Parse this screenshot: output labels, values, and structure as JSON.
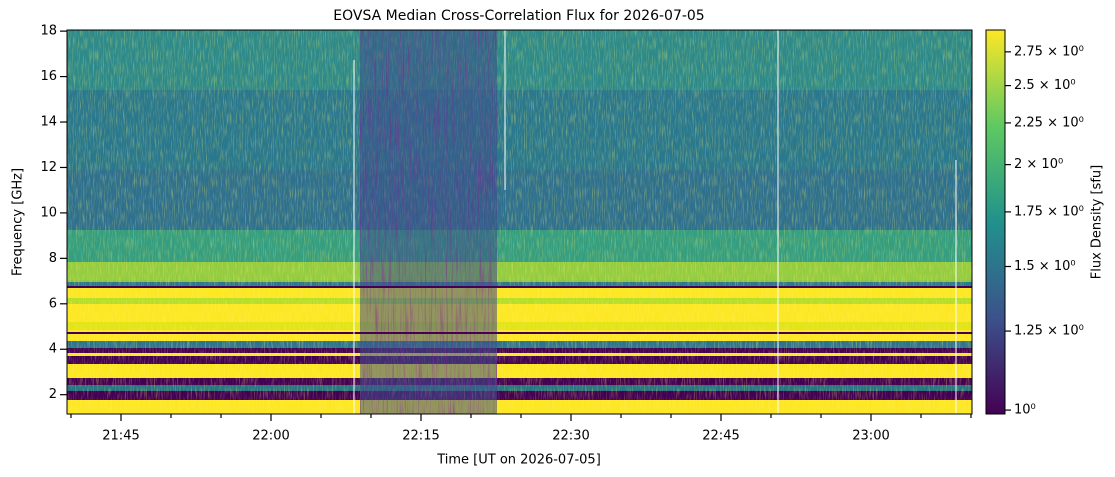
{
  "chart_data": {
    "type": "spectrogram",
    "title": "EOVSA Median Cross-Correlation Flux for 2026-07-05",
    "x_label": "Time [UT on 2026-07-05]",
    "y_label": "Frequency [GHz]",
    "xlim": [
      "21:39:36",
      "23:10:06"
    ],
    "xticks": [
      "21:45",
      "22:00",
      "22:15",
      "22:30",
      "22:45",
      "23:00"
    ],
    "x_minor_ticks": [
      "21:40",
      "21:50",
      "21:55",
      "22:05",
      "22:10",
      "22:20",
      "22:25",
      "22:35",
      "22:40",
      "22:50",
      "22:55",
      "23:05",
      "23:10"
    ],
    "ylim": [
      1.15,
      18.05
    ],
    "yticks": [
      2,
      4,
      6,
      8,
      10,
      12,
      14,
      16,
      18
    ],
    "colorbar": {
      "label": "Flux Density [sfu]",
      "log_scale": true,
      "lim": [
        0.989,
        2.925
      ],
      "ticks": [
        {
          "value": 1,
          "label": "10⁰"
        },
        {
          "value": 1.25,
          "label": "1.25 × 10⁰"
        },
        {
          "value": 1.5,
          "label": "1.5 × 10⁰"
        },
        {
          "value": 1.75,
          "label": "1.75 × 10⁰"
        },
        {
          "value": 2,
          "label": "2 × 10⁰"
        },
        {
          "value": 2.25,
          "label": "2.25 × 10⁰"
        },
        {
          "value": 2.5,
          "label": "2.5 × 10⁰"
        },
        {
          "value": 2.75,
          "label": "2.75 × 10⁰"
        }
      ],
      "colormap": [
        "#440154",
        "#3b528b",
        "#21918c",
        "#5ec962",
        "#fde725"
      ]
    }
  }
}
